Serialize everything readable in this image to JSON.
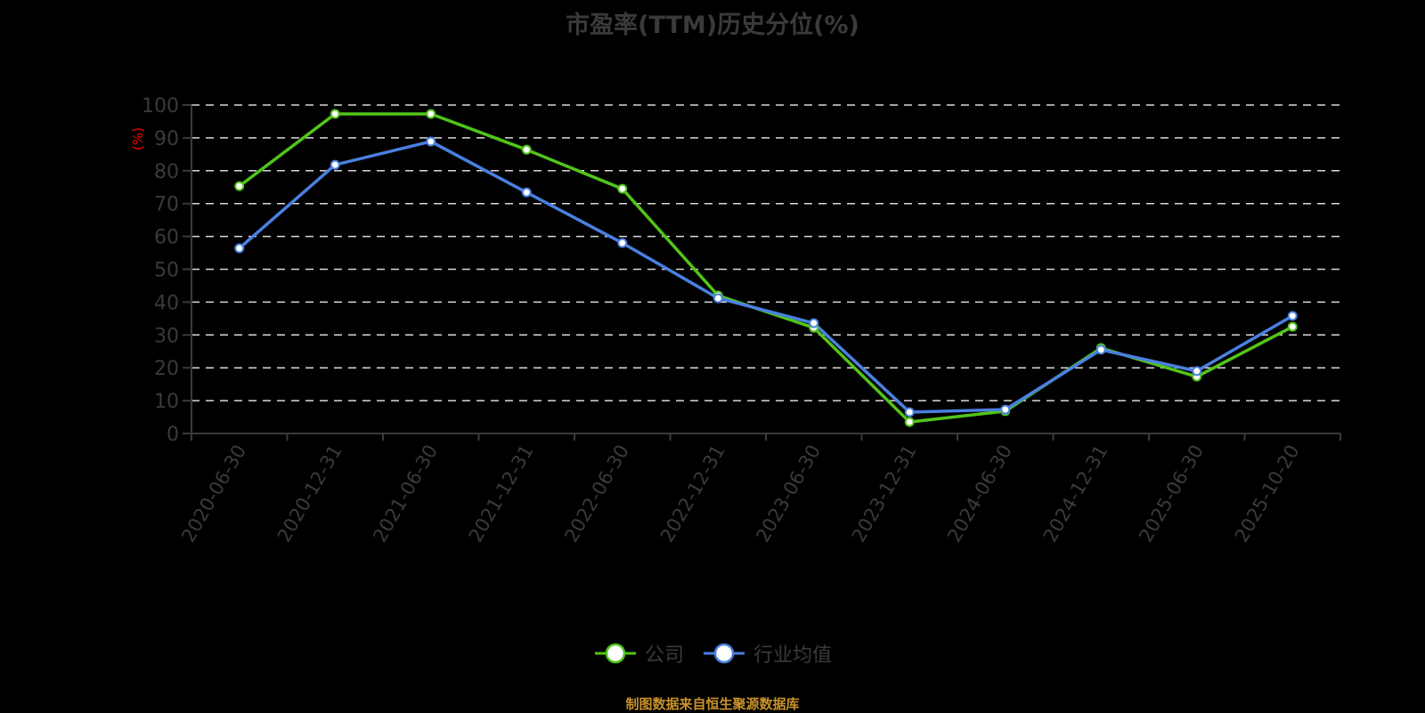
{
  "title": "市盈率(TTM)历史分位(%)",
  "footer": "制图数据来自恒生聚源数据库",
  "colors": {
    "company": "#52c41a",
    "industry": "#4a80e0",
    "grid": "#d9d9d9",
    "axis": "#3a3a3a",
    "unit": "#ff0000",
    "footer": "#c8922a"
  },
  "legend": [
    {
      "label": "公司",
      "series": "company"
    },
    {
      "label": "行业均值",
      "series": "industry"
    }
  ],
  "chart_data": {
    "type": "line",
    "title": "市盈率(TTM)历史分位(%)",
    "xlabel": "",
    "ylabel": "(%)",
    "ylim": [
      0,
      100
    ],
    "yticks": [
      0,
      10,
      20,
      30,
      40,
      50,
      60,
      70,
      80,
      90,
      100
    ],
    "grid": true,
    "legend_position": "bottom",
    "categories": [
      "2020-06-30",
      "2020-12-31",
      "2021-06-30",
      "2021-12-31",
      "2022-06-30",
      "2022-12-31",
      "2023-06-30",
      "2023-12-31",
      "2024-06-30",
      "2024-12-31",
      "2025-06-30",
      "2025-10-20"
    ],
    "series": [
      {
        "name": "公司",
        "key": "company",
        "values": [
          75.3,
          97.3,
          97.3,
          86.4,
          74.5,
          42.0,
          32.2,
          3.5,
          6.8,
          26.0,
          17.3,
          32.5
        ]
      },
      {
        "name": "行业均值",
        "key": "industry",
        "values": [
          56.4,
          81.8,
          88.9,
          73.4,
          58.0,
          41.2,
          33.6,
          6.5,
          7.3,
          25.5,
          19.0,
          35.8
        ]
      }
    ]
  }
}
